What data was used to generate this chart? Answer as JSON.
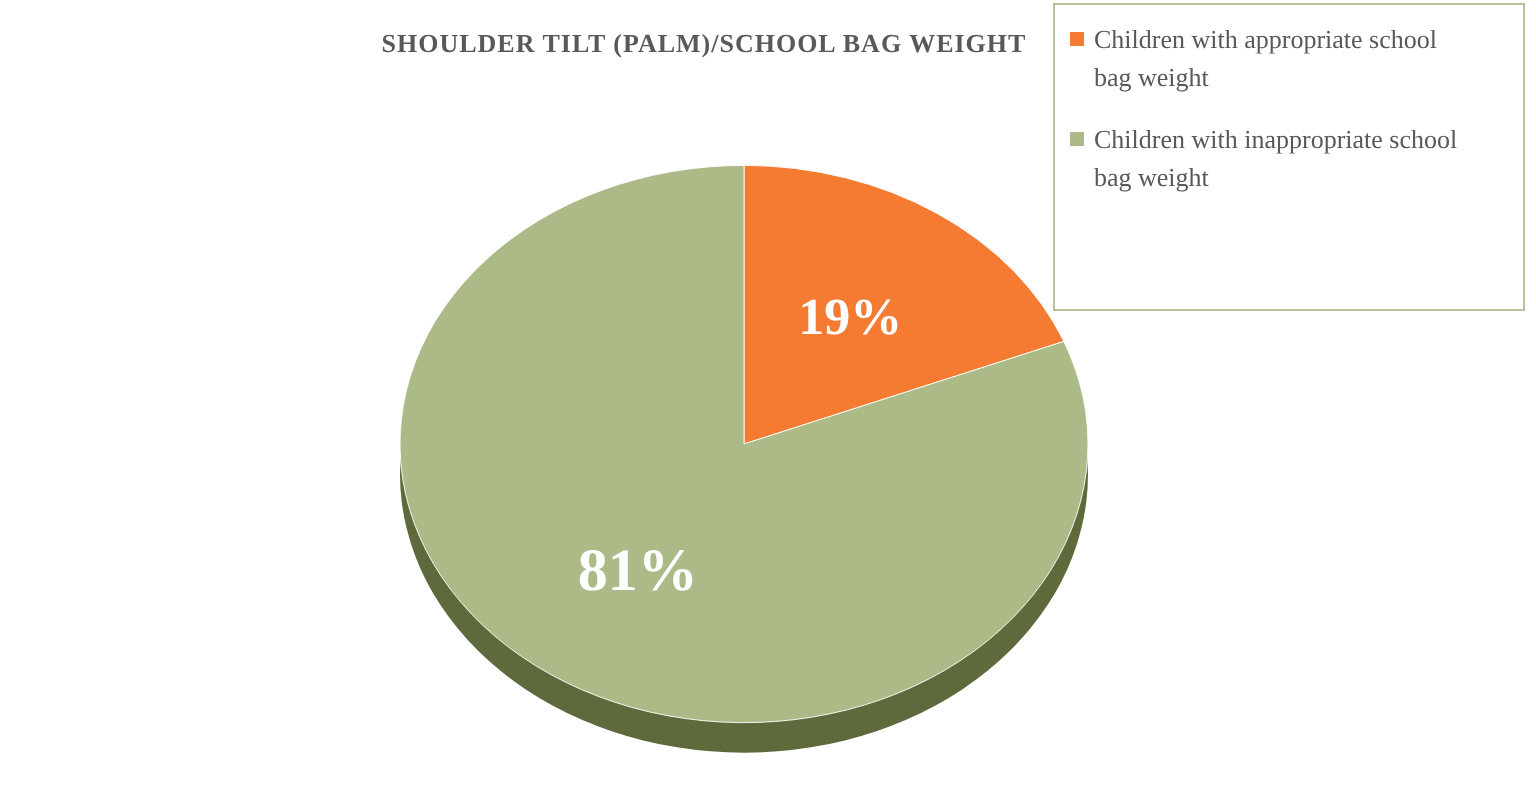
{
  "chart_data": {
    "type": "pie",
    "title": "SHOULDER TILT (PALM)/SCHOOL BAG WEIGHT",
    "categories": [
      "Children with appropriate school bag weight",
      "Children with inappropriate school bag weight"
    ],
    "values": [
      19,
      81
    ],
    "colors": [
      "#f47b31",
      "#abba86"
    ],
    "value_labels": [
      "19%",
      "81%"
    ],
    "legend": "top right"
  }
}
